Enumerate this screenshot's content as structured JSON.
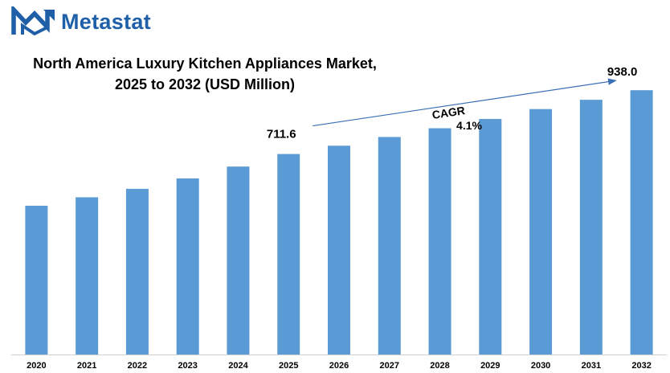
{
  "brand": {
    "name": "Metastat",
    "logo_icon": "metastat-m-logo-icon",
    "accent": "#1f5fa8"
  },
  "chart_data": {
    "type": "bar",
    "title_lines": [
      "North America Luxury Kitchen Appliances Market,",
      "2025 to 2032 (USD Million)"
    ],
    "categories": [
      "2020",
      "2021",
      "2022",
      "2023",
      "2024",
      "2025",
      "2026",
      "2027",
      "2028",
      "2029",
      "2030",
      "2031",
      "2032"
    ],
    "values": [
      528,
      558,
      588,
      625,
      667,
      711.6,
      741,
      772,
      803,
      836,
      871,
      904,
      938.0
    ],
    "data_labels": [
      {
        "category": "2025",
        "text": "711.6"
      },
      {
        "category": "2032",
        "text": "938.0"
      }
    ],
    "annotation": {
      "label": "CAGR",
      "value": "4.1%",
      "from": "2025",
      "to": "2032"
    },
    "ylim": [
      0,
      950
    ],
    "grid": false,
    "legend": "none",
    "bar_color": "#5b9bd5"
  }
}
